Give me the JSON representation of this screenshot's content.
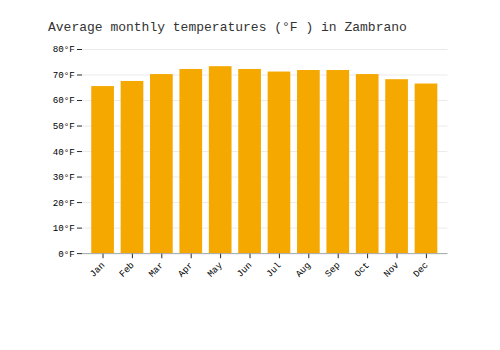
{
  "chart_data": {
    "type": "bar",
    "title": "Average monthly temperatures (°F ) in Zambrano",
    "categories": [
      "Jan",
      "Feb",
      "Mar",
      "Apr",
      "May",
      "Jun",
      "Jul",
      "Aug",
      "Sep",
      "Oct",
      "Nov",
      "Dec"
    ],
    "values": [
      65.5,
      67.5,
      70.2,
      72.2,
      73.3,
      72.2,
      71.2,
      71.8,
      71.8,
      70.2,
      68.2,
      66.5
    ],
    "color": "#F5A800",
    "ylim": [
      0,
      80
    ],
    "yticks": [
      {
        "value": 0,
        "label": "0°F"
      },
      {
        "value": 10,
        "label": "10°F"
      },
      {
        "value": 20,
        "label": "20°F"
      },
      {
        "value": 30,
        "label": "30°F"
      },
      {
        "value": 40,
        "label": "40°F"
      },
      {
        "value": 50,
        "label": "50°F"
      },
      {
        "value": 60,
        "label": "60°F"
      },
      {
        "value": 70,
        "label": "70°F"
      },
      {
        "value": 80,
        "label": "80°F"
      }
    ],
    "grid": true
  }
}
